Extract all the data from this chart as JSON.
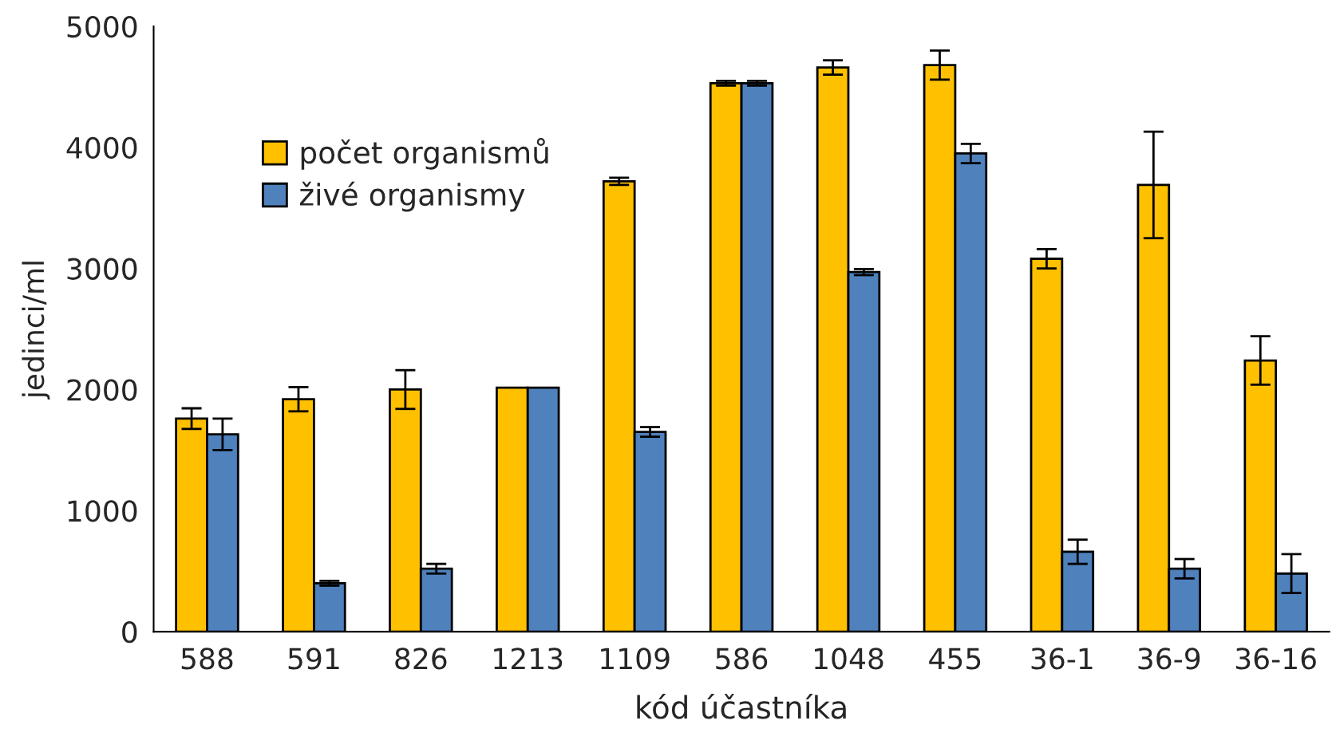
{
  "chart_data": {
    "type": "bar",
    "xlabel": "kód účastníka",
    "ylabel": "jedinci/ml",
    "categories": [
      "588",
      "591",
      "826",
      "1213",
      "1109",
      "586",
      "1048",
      "455",
      "36-1",
      "36-9",
      "36-16"
    ],
    "series": [
      {
        "name": "počet organismů",
        "color": "#ffc000",
        "values": [
          1760,
          1920,
          2000,
          2015,
          3720,
          4530,
          4660,
          4680,
          3080,
          3690,
          2240
        ],
        "errors": [
          85,
          100,
          160,
          null,
          30,
          20,
          60,
          120,
          80,
          440,
          200
        ]
      },
      {
        "name": "živé organismy",
        "color": "#4f81bd",
        "values": [
          1630,
          400,
          520,
          2015,
          1650,
          4530,
          2970,
          3950,
          660,
          520,
          480
        ],
        "errors": [
          130,
          20,
          40,
          null,
          40,
          20,
          25,
          80,
          100,
          80,
          160
        ]
      }
    ],
    "ylim": [
      0,
      5000
    ],
    "yticks": [
      0,
      1000,
      2000,
      3000,
      4000,
      5000
    ],
    "grid": false,
    "legend": "top left"
  }
}
